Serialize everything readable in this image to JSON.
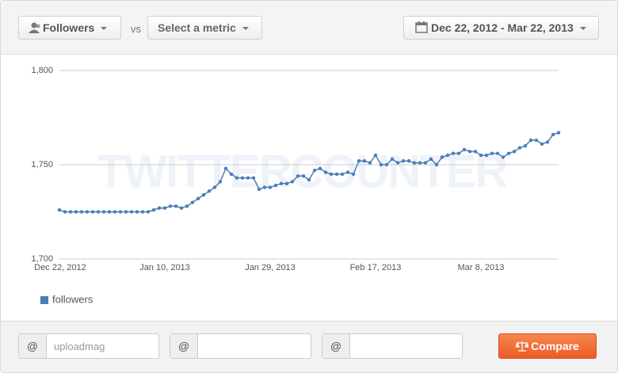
{
  "toolbar": {
    "metric": "Followers",
    "vs": "vs",
    "second_metric": "Select a metric",
    "date_range": "Dec 22, 2012 - Mar 22, 2013"
  },
  "watermark": "TWITTERCOUNTER",
  "chart_data": {
    "type": "line",
    "x": [
      "2012-12-22",
      "2012-12-23",
      "2012-12-24",
      "2012-12-25",
      "2012-12-26",
      "2012-12-27",
      "2012-12-28",
      "2012-12-29",
      "2012-12-30",
      "2012-12-31",
      "2013-01-01",
      "2013-01-02",
      "2013-01-03",
      "2013-01-04",
      "2013-01-05",
      "2013-01-06",
      "2013-01-07",
      "2013-01-08",
      "2013-01-09",
      "2013-01-10",
      "2013-01-11",
      "2013-01-12",
      "2013-01-13",
      "2013-01-14",
      "2013-01-15",
      "2013-01-16",
      "2013-01-17",
      "2013-01-18",
      "2013-01-19",
      "2013-01-20",
      "2013-01-21",
      "2013-01-22",
      "2013-01-23",
      "2013-01-24",
      "2013-01-25",
      "2013-01-26",
      "2013-01-27",
      "2013-01-28",
      "2013-01-29",
      "2013-01-30",
      "2013-01-31",
      "2013-02-01",
      "2013-02-02",
      "2013-02-03",
      "2013-02-04",
      "2013-02-05",
      "2013-02-06",
      "2013-02-07",
      "2013-02-08",
      "2013-02-09",
      "2013-02-10",
      "2013-02-11",
      "2013-02-12",
      "2013-02-13",
      "2013-02-14",
      "2013-02-15",
      "2013-02-16",
      "2013-02-17",
      "2013-02-18",
      "2013-02-19",
      "2013-02-20",
      "2013-02-21",
      "2013-02-22",
      "2013-02-23",
      "2013-02-24",
      "2013-02-25",
      "2013-02-26",
      "2013-02-27",
      "2013-02-28",
      "2013-03-01",
      "2013-03-02",
      "2013-03-03",
      "2013-03-04",
      "2013-03-05",
      "2013-03-06",
      "2013-03-07",
      "2013-03-08",
      "2013-03-09",
      "2013-03-10",
      "2013-03-11",
      "2013-03-12",
      "2013-03-13",
      "2013-03-14",
      "2013-03-15",
      "2013-03-16",
      "2013-03-17",
      "2013-03-18",
      "2013-03-19",
      "2013-03-20",
      "2013-03-21",
      "2013-03-22"
    ],
    "series": [
      {
        "name": "followers",
        "color": "#4a7ebb",
        "values": [
          1726,
          1725,
          1725,
          1725,
          1725,
          1725,
          1725,
          1725,
          1725,
          1725,
          1725,
          1725,
          1725,
          1725,
          1725,
          1725,
          1725,
          1726,
          1727,
          1727,
          1728,
          1728,
          1727,
          1728,
          1730,
          1732,
          1734,
          1736,
          1738,
          1741,
          1748,
          1745,
          1743,
          1743,
          1743,
          1743,
          1737,
          1738,
          1738,
          1739,
          1740,
          1740,
          1741,
          1744,
          1744,
          1742,
          1747,
          1748,
          1746,
          1745,
          1745,
          1745,
          1746,
          1745,
          1752,
          1752,
          1751,
          1755,
          1750,
          1750,
          1753,
          1751,
          1752,
          1752,
          1751,
          1751,
          1751,
          1753,
          1750,
          1754,
          1755,
          1756,
          1756,
          1758,
          1757,
          1757,
          1755,
          1755,
          1756,
          1756,
          1754,
          1756,
          1757,
          1759,
          1760,
          1763,
          1763,
          1761,
          1762,
          1766,
          1767
        ]
      }
    ],
    "xlim": [
      "2012-12-22",
      "2013-03-22"
    ],
    "xticks": [
      {
        "value": "2012-12-22",
        "label": "Dec 22, 2012"
      },
      {
        "value": "2013-01-10",
        "label": "Jan 10, 2013"
      },
      {
        "value": "2013-01-29",
        "label": "Jan 29, 2013"
      },
      {
        "value": "2013-02-17",
        "label": "Feb 17, 2013"
      },
      {
        "value": "2013-03-08",
        "label": "Mar 8, 2013"
      }
    ],
    "ylim": [
      1700,
      1800
    ],
    "yticks": [
      {
        "value": 1700,
        "label": "1,700"
      },
      {
        "value": 1750,
        "label": "1,750"
      },
      {
        "value": 1800,
        "label": "1,800"
      }
    ],
    "grid": true,
    "legend": "bottom-left"
  },
  "compare": {
    "at_1": "@",
    "placeholder_1": "uploadmag",
    "at_2": "@",
    "at_3": "@",
    "button": "Compare"
  }
}
